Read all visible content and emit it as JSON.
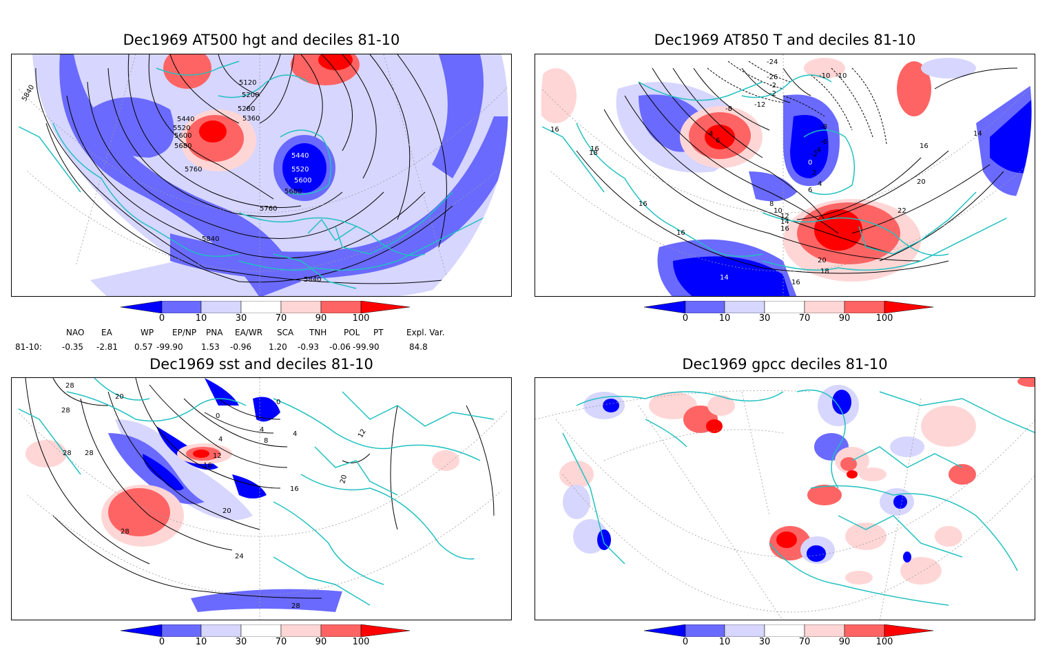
{
  "panels": {
    "p1": {
      "title": "Dec1969 AT500 hgt and deciles 81-10",
      "contour_labels": [
        "5840",
        "5120",
        "5200",
        "5280",
        "5360",
        "5440",
        "5520",
        "5600",
        "5680",
        "5760",
        "5440",
        "5520",
        "5600",
        "5680",
        "5760",
        "5840",
        "5840"
      ]
    },
    "p2": {
      "title": "Dec1969 AT850 T and deciles 81-10",
      "contour_labels": [
        "-24",
        "-26",
        "-2",
        "-2",
        "-10",
        "-10",
        "-12",
        "-8",
        "-8",
        "4",
        "6",
        "-6",
        "-4",
        "-2",
        "0",
        "2",
        "4",
        "6",
        "8",
        "10",
        "12",
        "14",
        "16",
        "16",
        "16",
        "16",
        "18",
        "16",
        "14",
        "16",
        "20",
        "22",
        "20",
        "18",
        "14",
        "16"
      ]
    },
    "p3": {
      "title": "Dec1969 sst and deciles 81-10",
      "contour_labels": [
        "28",
        "20",
        "28",
        "28",
        "28",
        "0",
        "0",
        "4",
        "4",
        "8",
        "12",
        "16",
        "20",
        "16",
        "20",
        "24",
        "28",
        "28",
        "12",
        "4"
      ]
    },
    "p4": {
      "title": "Dec1969 gpcc deciles 81-10"
    }
  },
  "colorbar": {
    "ticks": [
      "0",
      "10",
      "30",
      "70",
      "90",
      "100"
    ],
    "colors": [
      "#0000ff",
      "#6a6aff",
      "#d6d6ff",
      "#ffffff",
      "#ffd6d6",
      "#ff6464",
      "#ff0000"
    ]
  },
  "indices": {
    "header": [
      "NAO",
      "EA",
      "WP",
      "EP/NP",
      "PNA",
      "EA/WR",
      "SCA",
      "TNH",
      "POL",
      "PT",
      "Expl. Var."
    ],
    "row_label": "81-10:",
    "values": [
      "-0.35",
      "-2.81",
      "0.57",
      "-99.90",
      "1.53",
      "-0.96",
      "1.20",
      "-0.93",
      "-0.06",
      "-99.90",
      "84.8"
    ]
  },
  "colors": {
    "coast": "#20c0c0",
    "contour": "#000000"
  }
}
